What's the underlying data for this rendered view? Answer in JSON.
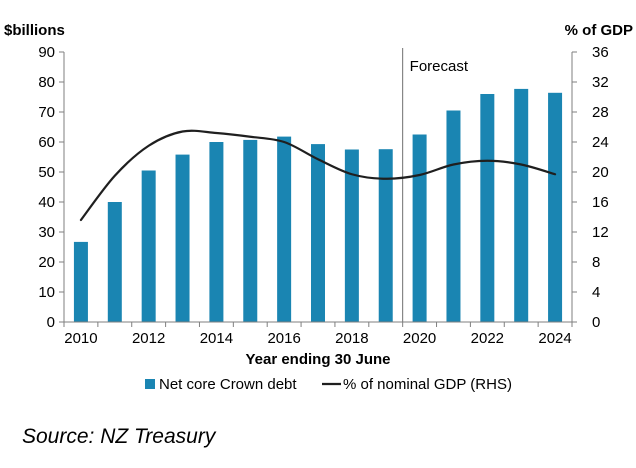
{
  "chart_data": {
    "type": "bar",
    "categories": [
      "2010",
      "2011",
      "2012",
      "2013",
      "2014",
      "2015",
      "2016",
      "2017",
      "2018",
      "2019",
      "2020",
      "2021",
      "2022",
      "2023",
      "2024"
    ],
    "x_tick_labels": [
      "2010",
      "2012",
      "2014",
      "2016",
      "2018",
      "2020",
      "2022",
      "2024"
    ],
    "series": [
      {
        "name": "Net core Crown debt",
        "type": "bar",
        "axis": "left",
        "color": "#1a85b2",
        "values": [
          26.7,
          40.0,
          50.5,
          55.8,
          60.0,
          60.7,
          61.8,
          59.3,
          57.5,
          57.6,
          62.5,
          70.5,
          76.0,
          77.7,
          76.4
        ]
      },
      {
        "name": "% of nominal GDP (RHS)",
        "type": "line",
        "axis": "right",
        "color": "#1f1f1f",
        "values": [
          13.6,
          19.5,
          23.5,
          25.4,
          25.2,
          24.7,
          24.0,
          21.7,
          19.7,
          19.1,
          19.6,
          21.0,
          21.5,
          21.0,
          19.7
        ]
      }
    ],
    "title": "",
    "ylabel_left": "$billions",
    "ylabel_right": "% of GDP",
    "xlabel": "Year ending 30 June",
    "ylim_left": [
      0,
      90
    ],
    "ylim_right": [
      0,
      36
    ],
    "yticks_left": [
      0,
      10,
      20,
      30,
      40,
      50,
      60,
      70,
      80,
      90
    ],
    "yticks_right": [
      0,
      4,
      8,
      12,
      16,
      20,
      24,
      28,
      32,
      36
    ],
    "forecast_label": "Forecast",
    "forecast_divider_after": "2019",
    "grid": false,
    "legend_position": "bottom"
  },
  "source_text": "Source: NZ Treasury"
}
